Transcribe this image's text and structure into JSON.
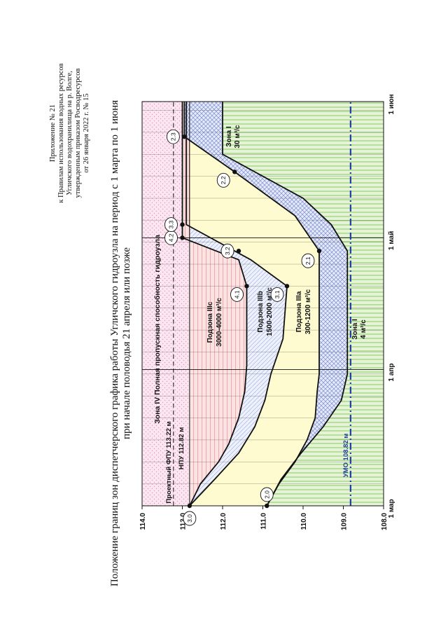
{
  "appendix": {
    "line1": "Приложение № 21",
    "line2": "к Правилам использования водных ресурсов",
    "line3": "Угличского водохранилища на р. Волге,",
    "line4": "утвержденным приказом Росводресурсов",
    "line5": "от 26 января 2022 г. № 15"
  },
  "title": {
    "line1": "Положение границ зон диспетчерского графика работы Угличского гидроузла на период с 1 марта по 1 июня",
    "line2": "при начале половодья 21 апреля или позже"
  },
  "chart_data": {
    "type": "area",
    "y_ticks": [
      "108.0",
      "109.0",
      "110.0",
      "111.0",
      "112.0",
      "113.0",
      "114.0"
    ],
    "ylim": [
      108.0,
      114.0
    ],
    "x_ticks": [
      "1 мар",
      "1 апр",
      "1 май",
      "1 июн"
    ],
    "xlim_days": [
      0,
      92
    ],
    "levels": {
      "proj_fpu": "Проектный ФПУ 113.22 м",
      "npu": "НПУ 112.82 м",
      "umo": "УМО 108.82 м"
    },
    "zones": {
      "zone4": "Зона IV  Полная пропускная способность гидроузла",
      "z3c_name": "Подзона IIIс",
      "z3c_flow": "3000-4000 м³/с",
      "z3b_name": "Подзона IIIb",
      "z3b_flow": "1500-2000 м³/с",
      "z3a_name": "Подзона IIIa",
      "z3a_flow": "300-1200 м³/с",
      "zone1a_name": "Зона I",
      "zone1a_flow": "4 м³/с",
      "zone1b_name": "Зона I",
      "zone1b_flow": "30 м³/с"
    },
    "points": [
      {
        "label": "3.0",
        "day": 0,
        "level": 112.82
      },
      {
        "label": "2.0",
        "day": 0,
        "level": 110.9
      },
      {
        "label": "4.1",
        "day": 50,
        "level": 111.4
      },
      {
        "label": "3.1",
        "day": 50,
        "level": 110.4
      },
      {
        "label": "3.2",
        "day": 58,
        "level": 111.6
      },
      {
        "label": "2.1",
        "day": 58,
        "level": 109.6
      },
      {
        "label": "4.2",
        "day": 61,
        "level": 113.0
      },
      {
        "label": "3.3",
        "day": 64,
        "level": 113.0
      },
      {
        "label": "2.2",
        "day": 76,
        "level": 111.7
      },
      {
        "label": "2.3",
        "day": 84,
        "level": 112.95
      }
    ]
  }
}
